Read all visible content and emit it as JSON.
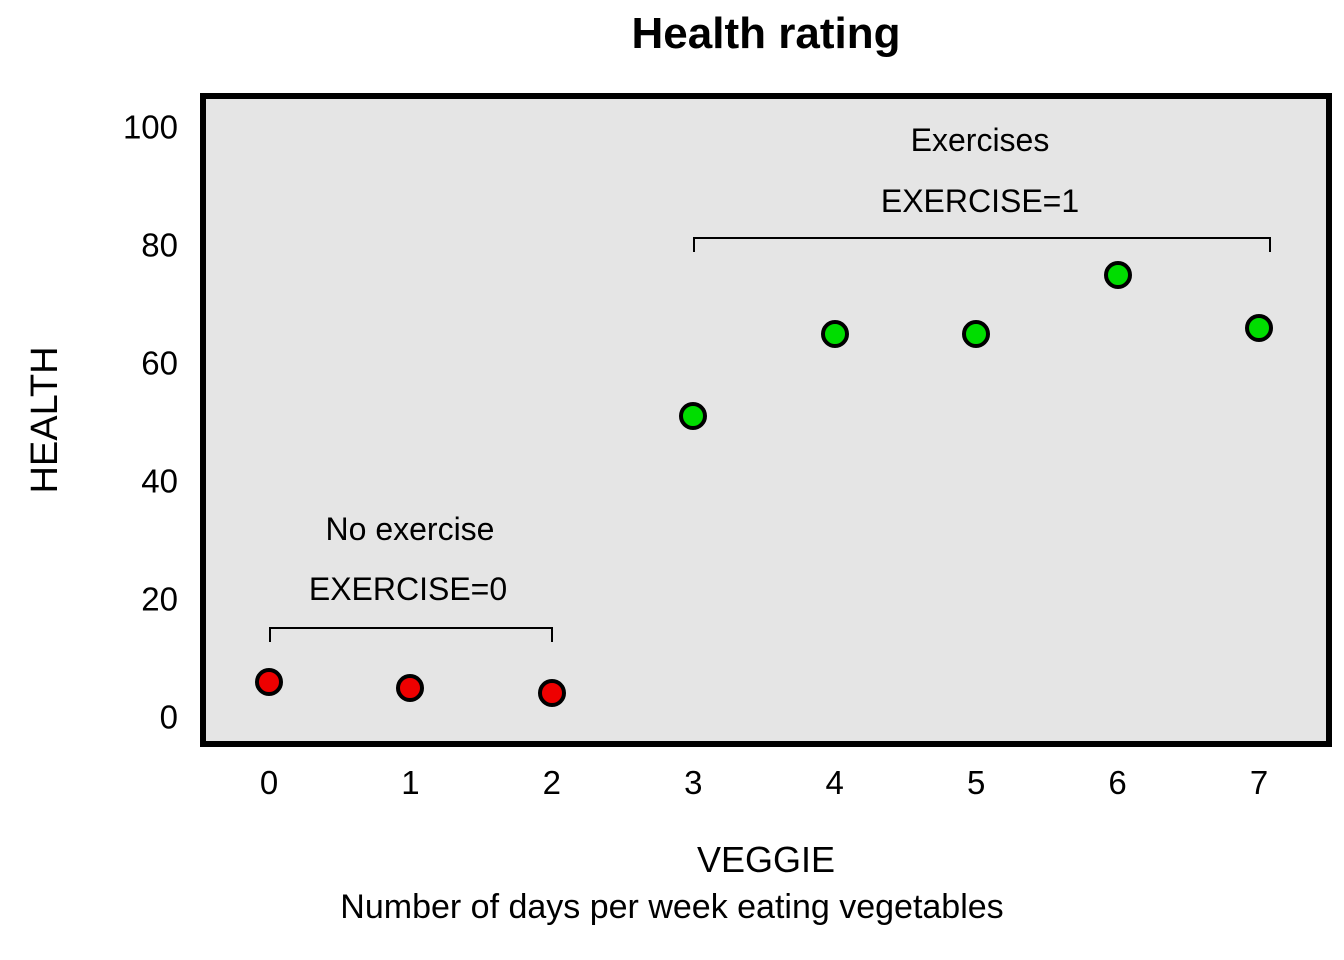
{
  "chart": {
    "title": "Health rating",
    "y_axis_label": "HEALTH",
    "x_axis_label": "VEGGIE",
    "x_axis_caption": "Number of days per week eating vegetables"
  },
  "annotations": {
    "no_exercise": {
      "line1": "No exercise",
      "line2": "EXERCISE=0"
    },
    "exercises": {
      "line1": "Exercises",
      "line2": "EXERCISE=1"
    }
  },
  "colors": {
    "no_exercise_point": "#ee0000",
    "exercise_point": "#00dd00",
    "point_outline": "#000000",
    "plot_background": "#e5e5e5",
    "plot_border": "#000000"
  },
  "chart_data": {
    "type": "scatter",
    "title": "Health rating",
    "xlabel": "VEGGIE",
    "xlabel_caption": "Number of days per week eating vegetables",
    "ylabel": "HEALTH",
    "xlim": [
      -0.5,
      7.5
    ],
    "ylim": [
      -4,
      105
    ],
    "x_ticks": [
      0,
      1,
      2,
      3,
      4,
      5,
      6,
      7
    ],
    "y_ticks": [
      0,
      20,
      40,
      60,
      80,
      100
    ],
    "grid": false,
    "legend_position": "none",
    "series": [
      {
        "name": "EXERCISE=0",
        "label": "No exercise",
        "color": "#ee0000",
        "points": [
          {
            "x": 0,
            "y": 6
          },
          {
            "x": 1,
            "y": 5
          },
          {
            "x": 2,
            "y": 4
          }
        ]
      },
      {
        "name": "EXERCISE=1",
        "label": "Exercises",
        "color": "#00dd00",
        "points": [
          {
            "x": 3,
            "y": 51
          },
          {
            "x": 4,
            "y": 65
          },
          {
            "x": 5,
            "y": 65
          },
          {
            "x": 6,
            "y": 75
          },
          {
            "x": 7,
            "y": 66
          }
        ]
      }
    ]
  }
}
